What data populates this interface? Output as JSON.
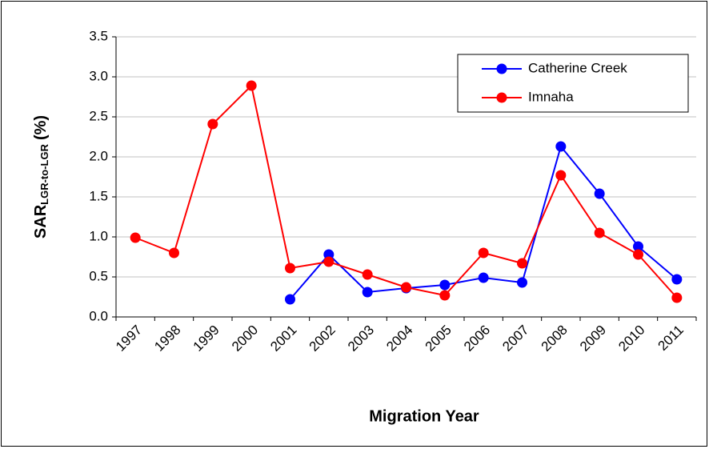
{
  "chart_data": {
    "type": "line",
    "x_label": "Migration Year",
    "y_label": "SAR",
    "y_label_sub": "LGR-to-LGR",
    "y_label_unit": "(%)",
    "categories": [
      "1997",
      "1998",
      "1999",
      "2000",
      "2001",
      "2002",
      "2003",
      "2004",
      "2005",
      "2006",
      "2007",
      "2008",
      "2009",
      "2010",
      "2011"
    ],
    "series": [
      {
        "name": "Catherine Creek",
        "color": "#0000ff",
        "values": [
          null,
          null,
          null,
          null,
          0.22,
          0.78,
          0.31,
          0.36,
          0.4,
          0.49,
          0.43,
          2.13,
          1.54,
          0.88,
          0.47
        ]
      },
      {
        "name": "Imnaha",
        "color": "#ff0000",
        "values": [
          0.99,
          0.8,
          2.41,
          2.89,
          0.61,
          0.69,
          0.53,
          0.37,
          0.27,
          0.8,
          0.67,
          1.77,
          1.05,
          0.78,
          0.24
        ]
      }
    ],
    "ylim": [
      0,
      3.5
    ],
    "yticks": [
      {
        "value": 0,
        "label": "0.0"
      },
      {
        "value": 0.5,
        "label": "0.5"
      },
      {
        "value": 1,
        "label": "1.0"
      },
      {
        "value": 1.5,
        "label": "1.5"
      },
      {
        "value": 2,
        "label": "2.0"
      },
      {
        "value": 2.5,
        "label": "2.5"
      },
      {
        "value": 3,
        "label": "3.0"
      },
      {
        "value": 3.5,
        "label": "3.5"
      }
    ],
    "grid": true
  }
}
